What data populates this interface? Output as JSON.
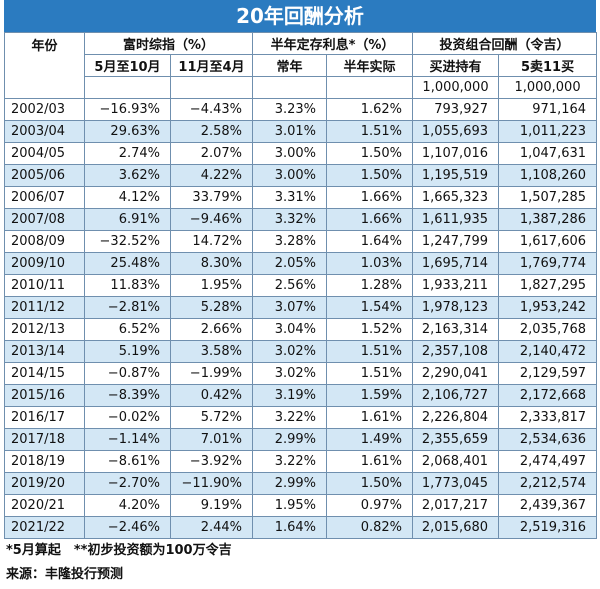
{
  "title": "20年回酬分析",
  "header": {
    "year": "年份",
    "groups": [
      "富时综指（%）",
      "半年定存利息*（%）",
      "投资组合回酬（令吉）"
    ],
    "subheaders": [
      "5月至10月",
      "11月至4月",
      "常年",
      "半年实际",
      "买进持有",
      "5卖11买"
    ],
    "initial": [
      "1,000,000",
      "1,000,000"
    ]
  },
  "table": {
    "rows": [
      [
        "2002/03",
        "−16.93%",
        "−4.43%",
        "3.23%",
        "1.62%",
        "793,927",
        "971,164"
      ],
      [
        "2003/04",
        "29.63%",
        "2.58%",
        "3.01%",
        "1.51%",
        "1,055,693",
        "1,011,223"
      ],
      [
        "2004/05",
        "2.74%",
        "2.07%",
        "3.00%",
        "1.50%",
        "1,107,016",
        "1,047,631"
      ],
      [
        "2005/06",
        "3.62%",
        "4.22%",
        "3.00%",
        "1.50%",
        "1,195,519",
        "1,108,260"
      ],
      [
        "2006/07",
        "4.12%",
        "33.79%",
        "3.31%",
        "1.66%",
        "1,665,323",
        "1,507,285"
      ],
      [
        "2007/08",
        "6.91%",
        "−9.46%",
        "3.32%",
        "1.66%",
        "1,611,935",
        "1,387,286"
      ],
      [
        "2008/09",
        "−32.52%",
        "14.72%",
        "3.28%",
        "1.64%",
        "1,247,799",
        "1,617,606"
      ],
      [
        "2009/10",
        "25.48%",
        "8.30%",
        "2.05%",
        "1.03%",
        "1,695,714",
        "1,769,774"
      ],
      [
        "2010/11",
        "11.83%",
        "1.95%",
        "2.56%",
        "1.28%",
        "1,933,211",
        "1,827,295"
      ],
      [
        "2011/12",
        "−2.81%",
        "5.28%",
        "3.07%",
        "1.54%",
        "1,978,123",
        "1,953,242"
      ],
      [
        "2012/13",
        "6.52%",
        "2.66%",
        "3.04%",
        "1.52%",
        "2,163,314",
        "2,035,768"
      ],
      [
        "2013/14",
        "5.19%",
        "3.58%",
        "3.02%",
        "1.51%",
        "2,357,108",
        "2,140,472"
      ],
      [
        "2014/15",
        "−0.87%",
        "−1.99%",
        "3.02%",
        "1.51%",
        "2,290,041",
        "2,129,597"
      ],
      [
        "2015/16",
        "−8.39%",
        "0.42%",
        "3.19%",
        "1.59%",
        "2,106,727",
        "2,172,668"
      ],
      [
        "2016/17",
        "−0.02%",
        "5.72%",
        "3.22%",
        "1.61%",
        "2,226,804",
        "2,333,817"
      ],
      [
        "2017/18",
        "−1.14%",
        "7.01%",
        "2.99%",
        "1.49%",
        "2,355,659",
        "2,534,636"
      ],
      [
        "2018/19",
        "−8.61%",
        "−3.92%",
        "3.22%",
        "1.61%",
        "2,068,401",
        "2,474,497"
      ],
      [
        "2019/20",
        "−2.70%",
        "−11.90%",
        "2.99%",
        "1.50%",
        "1,773,045",
        "2,212,574"
      ],
      [
        "2020/21",
        "4.20%",
        "9.19%",
        "1.95%",
        "0.97%",
        "2,017,217",
        "2,439,367"
      ],
      [
        "2021/22",
        "−2.46%",
        "2.44%",
        "1.64%",
        "0.82%",
        "2,015,680",
        "2,519,316"
      ]
    ]
  },
  "footer": {
    "note": "*5月算起　**初步投资额为100万令吉",
    "source": "来源：丰隆投行预测"
  }
}
